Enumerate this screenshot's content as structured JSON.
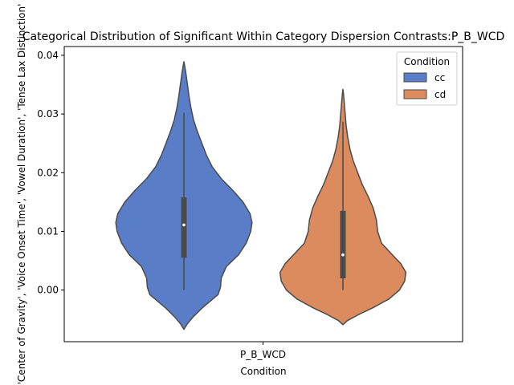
{
  "chart_data": {
    "type": "violin",
    "title": "Categorical Distribution of Significant Within Category Dispersion Contrasts:P_B_WCD",
    "xlabel": "Condition",
    "ylabel": "'Center of Gravity', 'Voice Onset Time', 'Vowel Duration', 'Tense Lax Distinction'",
    "categories": [
      "P_B_WCD"
    ],
    "ylim": [
      -0.0088,
      0.0415
    ],
    "yticks": [
      0.0,
      0.01,
      0.02,
      0.03,
      0.04
    ],
    "ytick_labels": [
      "0.00",
      "0.01",
      "0.02",
      "0.03",
      "0.04"
    ],
    "grid": false,
    "legend": {
      "title": "Condition",
      "placement": "top-right"
    },
    "series": [
      {
        "name": "cc",
        "color": "#5a7dc7",
        "box": {
          "whisker_low": 0.0,
          "q1": 0.0055,
          "median": 0.0111,
          "q3": 0.0158,
          "whisker_high": 0.0302
        },
        "density": [
          [
            -0.0067,
            0.0
          ],
          [
            -0.0058,
            0.05
          ],
          [
            -0.0045,
            0.15
          ],
          [
            -0.003,
            0.29
          ],
          [
            -0.0018,
            0.42
          ],
          [
            -0.0008,
            0.53
          ],
          [
            0.0005,
            0.57
          ],
          [
            0.002,
            0.58
          ],
          [
            0.004,
            0.66
          ],
          [
            0.006,
            0.85
          ],
          [
            0.008,
            0.97
          ],
          [
            0.01,
            1.04
          ],
          [
            0.0115,
            1.06
          ],
          [
            0.013,
            1.03
          ],
          [
            0.015,
            0.92
          ],
          [
            0.017,
            0.76
          ],
          [
            0.019,
            0.58
          ],
          [
            0.021,
            0.44
          ],
          [
            0.023,
            0.35
          ],
          [
            0.025,
            0.28
          ],
          [
            0.027,
            0.21
          ],
          [
            0.029,
            0.15
          ],
          [
            0.031,
            0.11
          ],
          [
            0.033,
            0.08
          ],
          [
            0.035,
            0.055
          ],
          [
            0.037,
            0.03
          ],
          [
            0.0382,
            0.012
          ],
          [
            0.0389,
            0.0
          ]
        ]
      },
      {
        "name": "cd",
        "color": "#dc8b5e",
        "box": {
          "whisker_low": 0.0,
          "q1": 0.002,
          "median": 0.006,
          "q3": 0.0135,
          "whisker_high": 0.0287
        },
        "density": [
          [
            -0.0059,
            0.0
          ],
          [
            -0.0052,
            0.07
          ],
          [
            -0.0042,
            0.24
          ],
          [
            -0.003,
            0.47
          ],
          [
            -0.0015,
            0.72
          ],
          [
            0.0,
            0.88
          ],
          [
            0.0015,
            0.96
          ],
          [
            0.003,
            0.98
          ],
          [
            0.0045,
            0.9
          ],
          [
            0.006,
            0.77
          ],
          [
            0.008,
            0.6
          ],
          [
            0.01,
            0.54
          ],
          [
            0.012,
            0.52
          ],
          [
            0.014,
            0.47
          ],
          [
            0.016,
            0.39
          ],
          [
            0.018,
            0.3
          ],
          [
            0.02,
            0.23
          ],
          [
            0.022,
            0.16
          ],
          [
            0.024,
            0.11
          ],
          [
            0.026,
            0.075
          ],
          [
            0.028,
            0.05
          ],
          [
            0.03,
            0.035
          ],
          [
            0.032,
            0.02
          ],
          [
            0.0335,
            0.008
          ],
          [
            0.0342,
            0.0
          ]
        ]
      }
    ]
  }
}
